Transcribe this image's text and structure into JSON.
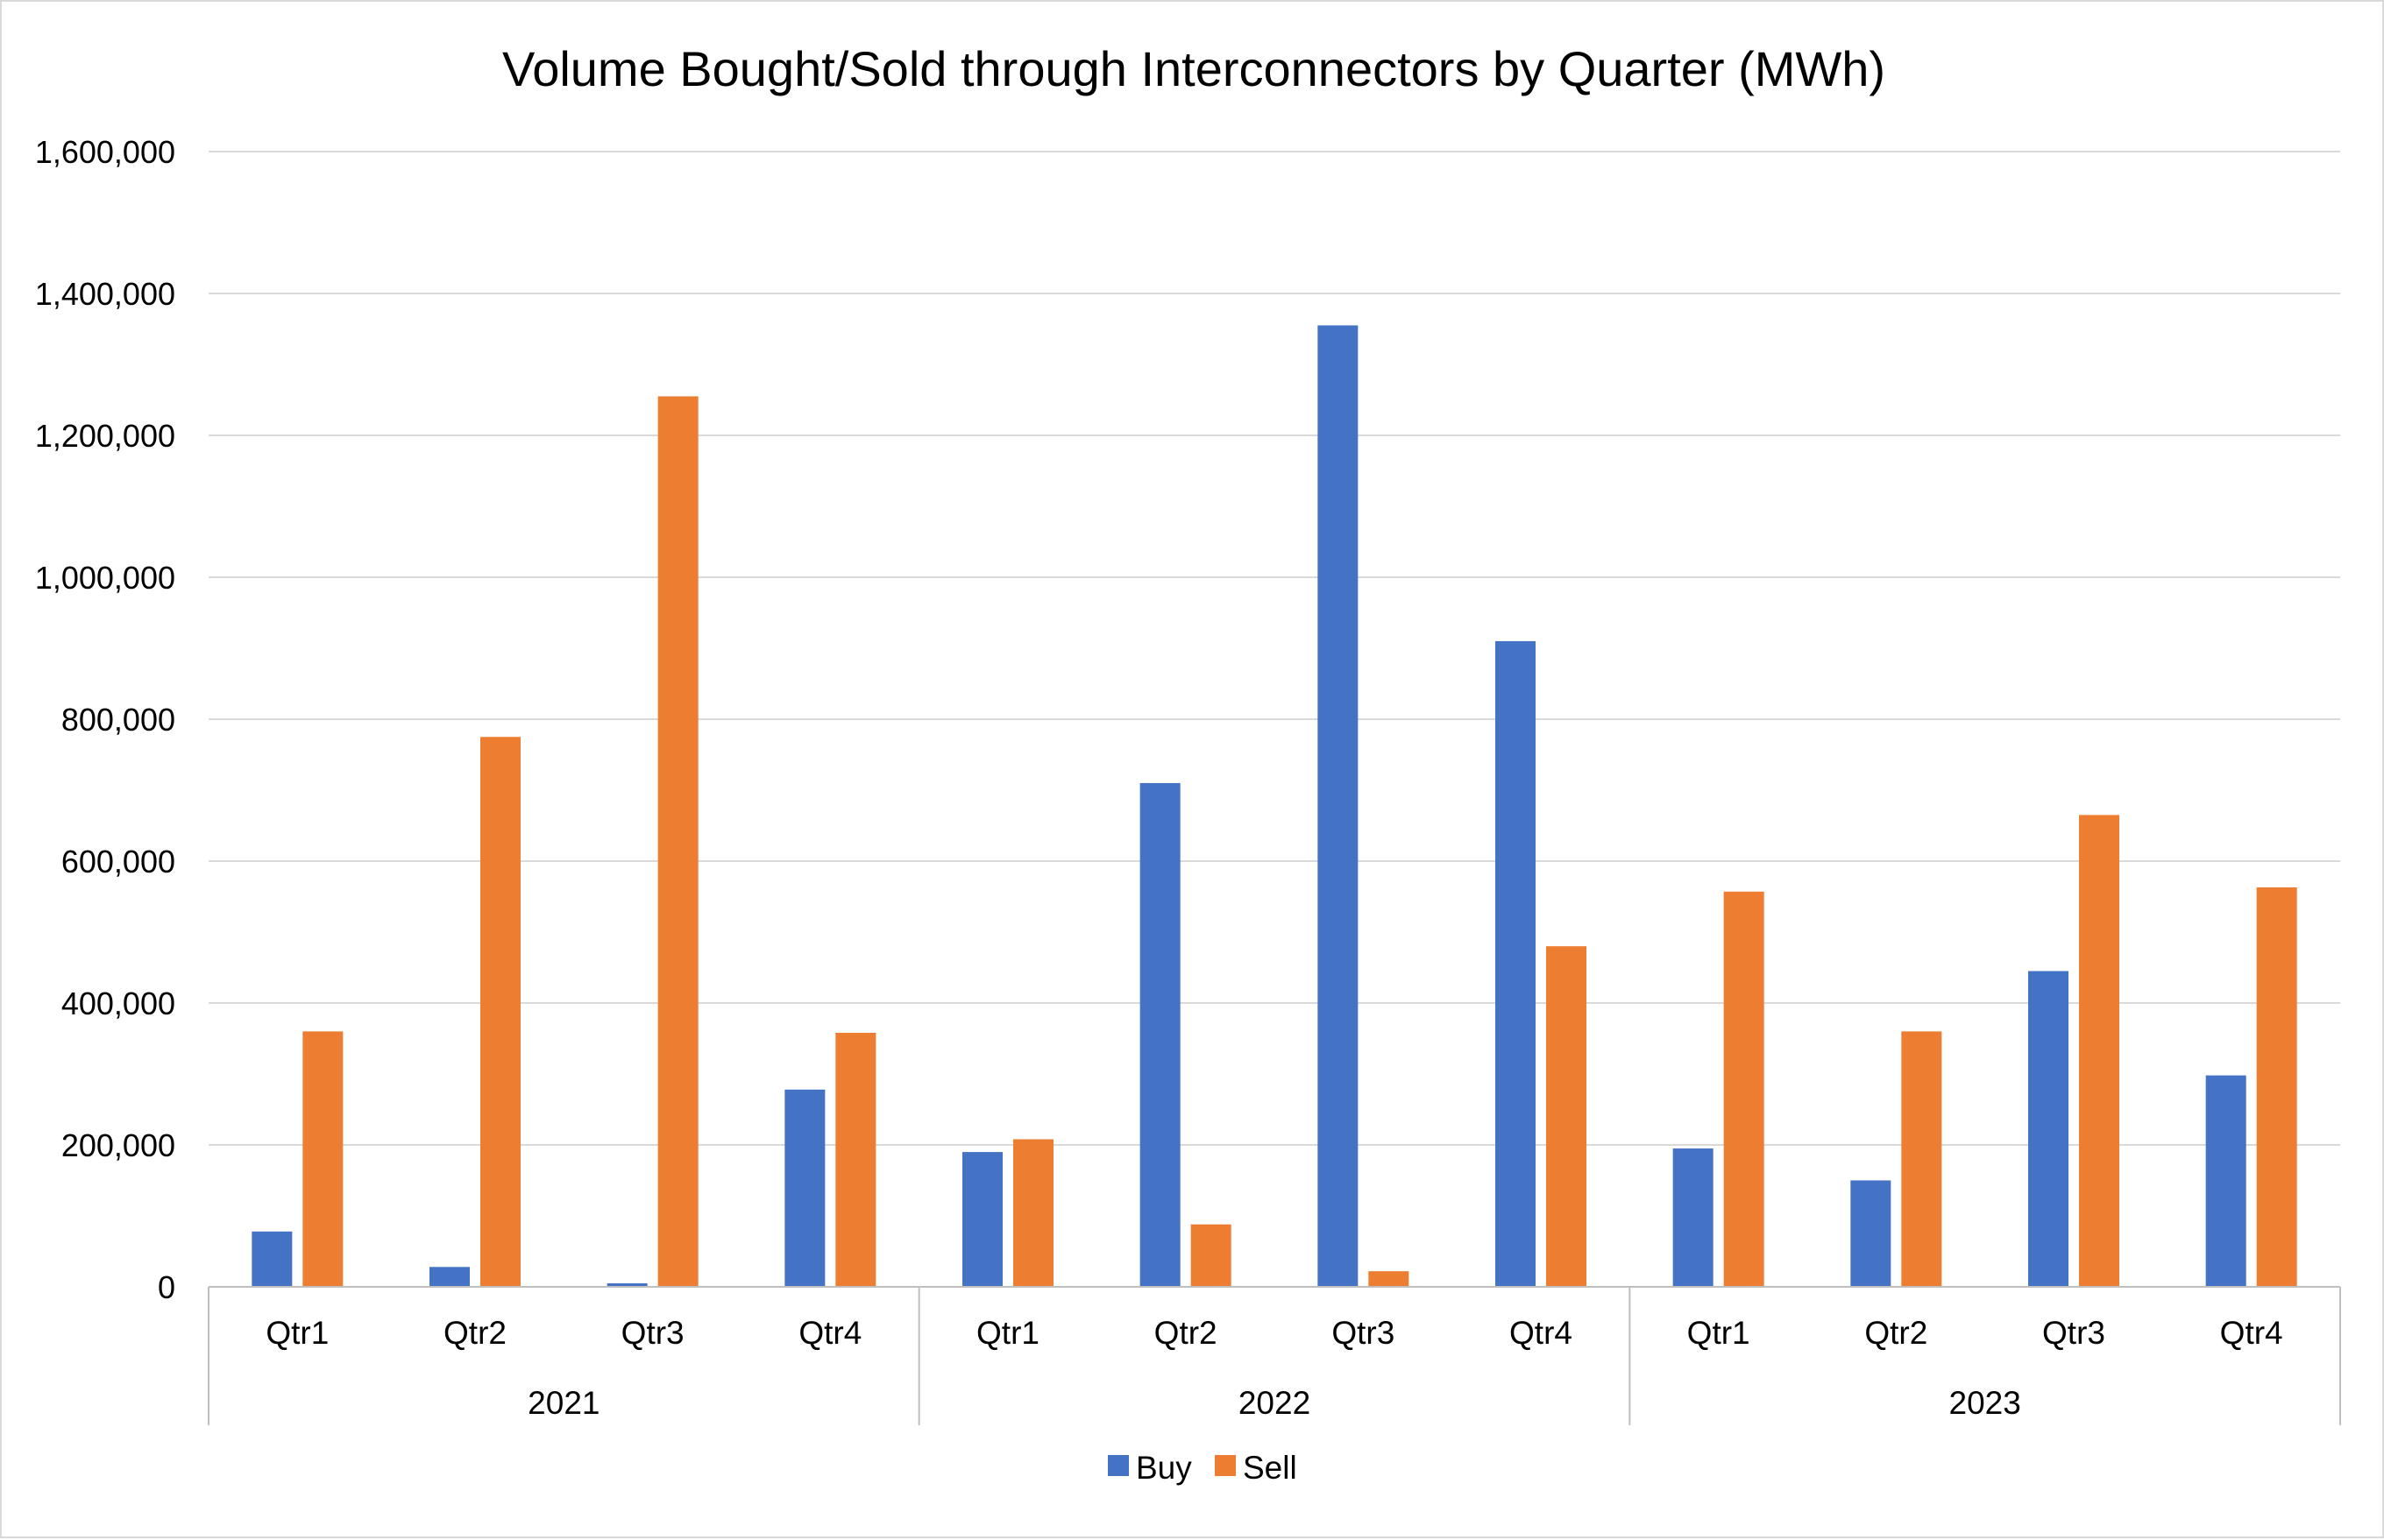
{
  "chart_data": {
    "type": "bar",
    "title": "Volume Bought/Sold through Interconnectors by Quarter (MWh)",
    "xlabel": "",
    "ylabel": "",
    "ylim": [
      0,
      1600000
    ],
    "yticks": [
      0,
      200000,
      400000,
      600000,
      800000,
      1000000,
      1200000,
      1400000,
      1600000
    ],
    "ytick_labels": [
      "0",
      "200,000",
      "400,000",
      "600,000",
      "800,000",
      "1,000,000",
      "1,200,000",
      "1,400,000",
      "1,600,000"
    ],
    "groups": [
      {
        "label": "2021",
        "categories": [
          "Qtr1",
          "Qtr2",
          "Qtr3",
          "Qtr4"
        ]
      },
      {
        "label": "2022",
        "categories": [
          "Qtr1",
          "Qtr2",
          "Qtr3",
          "Qtr4"
        ]
      },
      {
        "label": "2023",
        "categories": [
          "Qtr1",
          "Qtr2",
          "Qtr3",
          "Qtr4"
        ]
      }
    ],
    "categories": [
      "Qtr1",
      "Qtr2",
      "Qtr3",
      "Qtr4",
      "Qtr1",
      "Qtr2",
      "Qtr3",
      "Qtr4",
      "Qtr1",
      "Qtr2",
      "Qtr3",
      "Qtr4"
    ],
    "series": [
      {
        "name": "Buy",
        "color": "#4472c4",
        "values": [
          78000,
          28000,
          5000,
          278000,
          190000,
          710000,
          1355000,
          910000,
          195000,
          150000,
          445000,
          298000
        ]
      },
      {
        "name": "Sell",
        "color": "#ed7d31",
        "values": [
          360000,
          775000,
          1255000,
          358000,
          208000,
          88000,
          22000,
          480000,
          557000,
          360000,
          665000,
          563000
        ]
      }
    ],
    "grid": true,
    "legend_position": "bottom"
  }
}
